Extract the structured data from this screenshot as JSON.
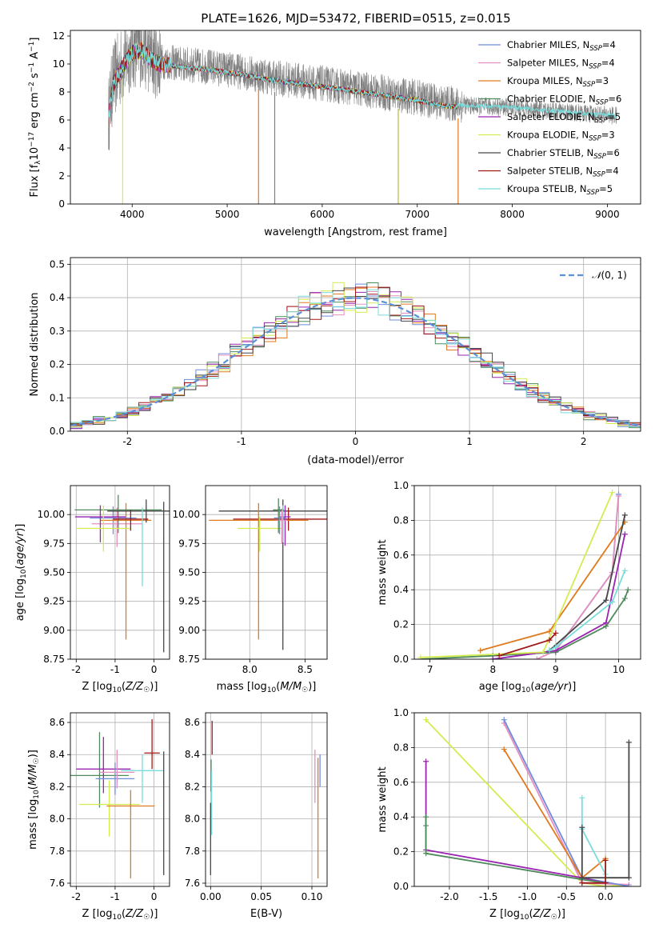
{
  "figure": {
    "title": "PLATE=1626, MJD=53472, FIBERID=0515, z=0.015"
  },
  "colors": {
    "Chabrier MILES": "#6f8bdc",
    "Salpeter MILES": "#e58fbf",
    "Kroupa MILES": "#e07a1f",
    "Chabrier ELODIE": "#4f8a5c",
    "Salpeter ELODIE": "#9b24b0",
    "Kroupa ELODIE": "#d4ec50",
    "Chabrier STELIB": "#474747",
    "Salpeter STELIB": "#a01818",
    "Kroupa STELIB": "#78dcdc",
    "data": "#7f7f7f",
    "normal_curve": "#5b8fd6",
    "grid": "#b0b0b0"
  },
  "chart_data": [
    {
      "id": "spectrum",
      "type": "line",
      "xlabel": "wavelength [Angstrom, rest frame]",
      "ylabel": "Flux [f_λ 10^-17 erg cm^-2 s^-1 A^-1]",
      "xlim": [
        3350,
        9350
      ],
      "ylim": [
        0,
        12.4
      ],
      "xticks": [
        4000,
        5000,
        6000,
        7000,
        8000,
        9000
      ],
      "yticks": [
        0,
        2,
        4,
        6,
        8,
        10,
        12
      ],
      "legend_position": "upper right",
      "observed_range": [
        3750,
        9100
      ],
      "series": [
        {
          "name": "Chabrier MILES",
          "nssp": 4
        },
        {
          "name": "Salpeter MILES",
          "nssp": 4
        },
        {
          "name": "Kroupa MILES",
          "nssp": 3
        },
        {
          "name": "Chabrier ELODIE",
          "nssp": 6
        },
        {
          "name": "Salpeter ELODIE",
          "nssp": 5
        },
        {
          "name": "Kroupa ELODIE",
          "nssp": 3
        },
        {
          "name": "Chabrier STELIB",
          "nssp": 6
        },
        {
          "name": "Salpeter STELIB",
          "nssp": 4
        },
        {
          "name": "Kroupa STELIB",
          "nssp": 5
        }
      ],
      "continuum": {
        "x": [
          3750,
          3800,
          3900,
          4000,
          4100,
          4200,
          4300,
          4500,
          4800,
          5000,
          5200,
          5500,
          6000,
          6300,
          6600,
          7000,
          7300,
          7600,
          8000,
          8500,
          9100
        ],
        "y": [
          6.2,
          8.8,
          10.0,
          11.0,
          11.2,
          10.5,
          10.2,
          10.0,
          9.8,
          9.6,
          9.4,
          9.0,
          8.6,
          8.3,
          8.0,
          7.6,
          7.2,
          7.0,
          6.9,
          6.6,
          6.3
        ]
      },
      "spikes_to_zero": [
        3900,
        5330,
        5500,
        6800,
        7430
      ]
    },
    {
      "id": "residuals",
      "type": "histogram",
      "xlabel": "(data-model)/error",
      "ylabel": "Normed distribution",
      "xlim": [
        -2.5,
        2.5
      ],
      "ylim": [
        0,
        0.52
      ],
      "xticks": [
        -2,
        -1,
        0,
        1,
        2
      ],
      "yticks": [
        0.0,
        0.1,
        0.2,
        0.3,
        0.4,
        0.5
      ],
      "bin_width": 0.1,
      "legend_position": "upper right",
      "reference_curve": {
        "label": "N(0,1)",
        "mu": 0,
        "sigma": 1
      }
    },
    {
      "id": "age_vs_Z",
      "type": "errorbar",
      "xlabel": "Z [log10(Z/Z☉)]",
      "ylabel": "age [log10(age/yr)]",
      "xlim": [
        -2.15,
        0.4
      ],
      "ylim": [
        8.75,
        10.25
      ],
      "xticks": [
        -2,
        -1,
        0
      ],
      "yticks": [
        8.75,
        9.0,
        9.25,
        9.5,
        9.75,
        10.0
      ],
      "points": [
        {
          "series": "Chabrier MILES",
          "x": -1.05,
          "xerr": 0.6,
          "y": 9.97,
          "yerr": [
            0.14,
            0.1
          ]
        },
        {
          "series": "Salpeter MILES",
          "x": -0.95,
          "xerr": 0.65,
          "y": 9.92,
          "yerr": [
            0.2,
            0.14
          ]
        },
        {
          "series": "Kroupa MILES",
          "x": -0.72,
          "xerr": 0.65,
          "y": 9.95,
          "yerr": [
            1.03,
            0.15
          ]
        },
        {
          "series": "Chabrier ELODIE",
          "x": -0.92,
          "xerr": 1.12,
          "y": 10.04,
          "yerr": [
            0.2,
            0.13
          ]
        },
        {
          "series": "Salpeter ELODIE",
          "x": -1.38,
          "xerr": 0.65,
          "y": 9.98,
          "yerr": [
            0.22,
            0.1
          ]
        },
        {
          "series": "Kroupa ELODIE",
          "x": -1.3,
          "xerr": 0.68,
          "y": 9.88,
          "yerr": [
            0.2,
            0.2
          ]
        },
        {
          "series": "Chabrier STELIB",
          "x": -0.2,
          "xerr": 1.0,
          "y": 10.03,
          "yerr": [
            0.1,
            0.1
          ]
        },
        {
          "series": "Salpeter STELIB",
          "x": -0.6,
          "xerr": 0.45,
          "y": 9.96,
          "yerr": [
            0.1,
            0.08
          ]
        },
        {
          "series": "Kroupa STELIB",
          "x": -0.3,
          "xerr": 0.0,
          "y": 9.96,
          "yerr": [
            0.58,
            0.1
          ]
        },
        {
          "series": "Chabrier STELIB",
          "x": 0.25,
          "xerr": 0.0,
          "y": 9.96,
          "yerr": [
            1.15,
            0.15
          ]
        }
      ]
    },
    {
      "id": "age_vs_mass",
      "type": "errorbar",
      "xlabel": "mass [log10(M/M☉)]",
      "ylabel": "",
      "xlim": [
        7.6,
        8.7
      ],
      "ylim": [
        8.75,
        10.25
      ],
      "xticks": [
        8.0,
        8.5
      ],
      "yticks": [
        8.75,
        9.0,
        9.25,
        9.5,
        9.75,
        10.0
      ],
      "points": [
        {
          "series": "Chabrier STELIB",
          "x": 8.3,
          "xerr": 0.58,
          "y": 10.03,
          "yerr": [
            1.2,
            0.1
          ]
        },
        {
          "series": "Salpeter STELIB",
          "x": 8.35,
          "xerr": 0.5,
          "y": 9.96,
          "yerr": [
            0.1,
            0.1
          ]
        },
        {
          "series": "Kroupa MILES",
          "x": 8.08,
          "xerr": 0.45,
          "y": 9.95,
          "yerr": [
            1.03,
            0.15
          ]
        },
        {
          "series": "Kroupa ELODIE",
          "x": 8.09,
          "xerr": 0.2,
          "y": 9.88,
          "yerr": [
            0.2,
            0.1
          ]
        },
        {
          "series": "Salpeter ELODIE",
          "x": 8.32,
          "xerr": 0.05,
          "y": 9.98,
          "yerr": [
            0.25,
            0.1
          ]
        },
        {
          "series": "Chabrier MILES",
          "x": 8.27,
          "xerr": 0.05,
          "y": 9.97,
          "yerr": [
            0.14,
            0.1
          ]
        },
        {
          "series": "Salpeter MILES",
          "x": 8.29,
          "xerr": 0.05,
          "y": 9.95,
          "yerr": [
            0.2,
            0.1
          ]
        },
        {
          "series": "Chabrier ELODIE",
          "x": 8.26,
          "xerr": 0.05,
          "y": 10.04,
          "yerr": [
            0.2,
            0.1
          ]
        },
        {
          "series": "Kroupa STELIB",
          "x": 8.3,
          "xerr": 0.0,
          "y": 9.96,
          "yerr": [
            0.2,
            0.12
          ]
        }
      ]
    },
    {
      "id": "massweight_vs_age",
      "type": "line",
      "xlabel": "age [log10(age/yr)]",
      "ylabel": "mass weight",
      "xlim": [
        6.75,
        10.35
      ],
      "ylim": [
        0,
        1.0
      ],
      "xticks": [
        7,
        8,
        9,
        10
      ],
      "yticks": [
        0.0,
        0.2,
        0.4,
        0.6,
        0.8,
        1.0
      ],
      "series": [
        {
          "name": "Chabrier MILES",
          "x": [
            8.0,
            9.0,
            9.9,
            10.0
          ],
          "y": [
            0.0,
            0.05,
            0.5,
            0.95
          ]
        },
        {
          "name": "Salpeter MILES",
          "x": [
            8.7,
            9.0,
            9.9,
            10.0
          ],
          "y": [
            0.0,
            0.05,
            0.5,
            0.94
          ]
        },
        {
          "name": "Kroupa MILES",
          "x": [
            7.8,
            8.9,
            10.1
          ],
          "y": [
            0.05,
            0.16,
            0.79
          ]
        },
        {
          "name": "Chabrier ELODIE",
          "x": [
            6.85,
            8.0,
            9.0,
            9.8,
            10.1,
            10.15
          ],
          "y": [
            0.0,
            0.02,
            0.04,
            0.19,
            0.35,
            0.4
          ]
        },
        {
          "name": "Salpeter ELODIE",
          "x": [
            8.0,
            9.0,
            9.8,
            10.1
          ],
          "y": [
            0.0,
            0.05,
            0.21,
            0.72
          ]
        },
        {
          "name": "Kroupa ELODIE",
          "x": [
            6.85,
            8.8,
            9.9
          ],
          "y": [
            0.01,
            0.04,
            0.96
          ]
        },
        {
          "name": "Chabrier STELIB",
          "x": [
            8.9,
            9.8,
            10.1
          ],
          "y": [
            0.05,
            0.34,
            0.83
          ]
        },
        {
          "name": "Salpeter STELIB",
          "x": [
            8.1,
            8.9,
            9.0
          ],
          "y": [
            0.02,
            0.11,
            0.15
          ]
        },
        {
          "name": "Kroupa STELIB",
          "x": [
            8.9,
            9.0,
            9.9,
            10.1
          ],
          "y": [
            0.05,
            0.07,
            0.33,
            0.51
          ]
        }
      ]
    },
    {
      "id": "mass_vs_Z",
      "type": "errorbar",
      "xlabel": "Z [log10(Z/Z☉)]",
      "ylabel": "mass [log10(M/M☉)]",
      "xlim": [
        -2.15,
        0.4
      ],
      "ylim": [
        7.58,
        8.66
      ],
      "xticks": [
        -2,
        -1,
        0
      ],
      "yticks": [
        7.6,
        7.8,
        8.0,
        8.2,
        8.4,
        8.6
      ],
      "points": [
        {
          "series": "Chabrier ELODIE",
          "x": -1.4,
          "xerr": 0.75,
          "y": 8.27,
          "yerr": [
            0.2,
            0.27
          ]
        },
        {
          "series": "Salpeter ELODIE",
          "x": -1.3,
          "xerr": 0.7,
          "y": 8.31,
          "yerr": [
            0.15,
            0.2
          ]
        },
        {
          "series": "Kroupa ELODIE",
          "x": -1.15,
          "xerr": 0.78,
          "y": 8.09,
          "yerr": [
            0.2,
            0.15
          ]
        },
        {
          "series": "Chabrier MILES",
          "x": -1.0,
          "xerr": 0.5,
          "y": 8.25,
          "yerr": [
            0.1,
            0.1
          ]
        },
        {
          "series": "Salpeter MILES",
          "x": -0.95,
          "xerr": 0.45,
          "y": 8.29,
          "yerr": [
            0.1,
            0.14
          ]
        },
        {
          "series": "Kroupa MILES",
          "x": -0.6,
          "xerr": 0.62,
          "y": 8.08,
          "yerr": [
            0.45,
            0.1
          ]
        },
        {
          "series": "Kroupa STELIB",
          "x": -0.3,
          "xerr": 0.55,
          "y": 8.3,
          "yerr": [
            0.2,
            0.1
          ]
        },
        {
          "series": "Salpeter STELIB",
          "x": -0.05,
          "xerr": 0.2,
          "y": 8.41,
          "yerr": [
            0.1,
            0.21
          ]
        },
        {
          "series": "Chabrier STELIB",
          "x": 0.25,
          "xerr": 0.0,
          "y": 8.33,
          "yerr": [
            0.68,
            0.09
          ]
        }
      ]
    },
    {
      "id": "mass_vs_EBV",
      "type": "errorbar",
      "xlabel": "E(B-V)",
      "ylabel": "",
      "xlim": [
        -0.005,
        0.115
      ],
      "ylim": [
        7.58,
        8.66
      ],
      "xticks": [
        0.0,
        0.05,
        0.1
      ],
      "yticks": [
        7.6,
        7.8,
        8.0,
        8.2,
        8.4,
        8.6
      ],
      "points": [
        {
          "series": "Salpeter STELIB",
          "x": 0.0015,
          "xerr": 0.0,
          "y": 8.5,
          "yerr": [
            0.1,
            0.11
          ]
        },
        {
          "series": "Chabrier ELODIE",
          "x": 0.0005,
          "xerr": 0.0,
          "y": 8.27,
          "yerr": [
            0.1,
            0.1
          ]
        },
        {
          "series": "Kroupa STELIB",
          "x": 0.001,
          "xerr": 0.0,
          "y": 8.1,
          "yerr": [
            0.2,
            0.2
          ]
        },
        {
          "series": "Chabrier STELIB",
          "x": 0.0,
          "xerr": 0.0,
          "y": 7.9,
          "yerr": [
            0.25,
            0.2
          ]
        },
        {
          "series": "Salpeter MILES",
          "x": 0.103,
          "xerr": 0.0,
          "y": 8.25,
          "yerr": [
            0.15,
            0.18
          ]
        },
        {
          "series": "Kroupa MILES",
          "x": 0.106,
          "xerr": 0.0,
          "y": 8.08,
          "yerr": [
            0.45,
            0.3
          ]
        },
        {
          "series": "Chabrier MILES",
          "x": 0.108,
          "xerr": 0.0,
          "y": 8.3,
          "yerr": [
            0.1,
            0.1
          ]
        }
      ]
    },
    {
      "id": "massweight_vs_Z",
      "type": "line",
      "xlabel": "Z [log10(Z/Z☉)]",
      "ylabel": "mass weight",
      "xlim": [
        -2.45,
        0.45
      ],
      "ylim": [
        0,
        1.0
      ],
      "xticks": [
        -2.0,
        -1.5,
        -1.0,
        -0.5,
        0.0
      ],
      "yticks": [
        0.0,
        0.2,
        0.4,
        0.6,
        0.8,
        1.0
      ],
      "series": [
        {
          "name": "Kroupa ELODIE",
          "x": [
            -2.3,
            -0.3,
            0.0,
            0.3
          ],
          "y": [
            0.96,
            0.02,
            0.0,
            0.01
          ]
        },
        {
          "name": "Salpeter MILES",
          "x": [
            -1.3,
            -0.3,
            0.3
          ],
          "y": [
            0.94,
            0.02,
            0.01
          ]
        },
        {
          "name": "Chabrier MILES",
          "x": [
            -1.3,
            -0.3,
            0.3
          ],
          "y": [
            0.96,
            0.05,
            0.0
          ]
        },
        {
          "name": "Kroupa MILES",
          "x": [
            -1.3,
            -0.3,
            0.0
          ],
          "y": [
            0.79,
            0.05,
            0.16
          ]
        },
        {
          "name": "Salpeter ELODIE",
          "x": [
            -2.3,
            -2.3,
            -0.3,
            0.0
          ],
          "y": [
            0.72,
            0.21,
            0.05,
            0.02
          ]
        },
        {
          "name": "Chabrier ELODIE",
          "x": [
            -2.3,
            -2.3,
            -2.3,
            -0.3,
            0.0
          ],
          "y": [
            0.4,
            0.35,
            0.19,
            0.04,
            0.02
          ]
        },
        {
          "name": "Kroupa STELIB",
          "x": [
            -0.3,
            -0.3,
            0.0,
            0.0
          ],
          "y": [
            0.51,
            0.33,
            0.07,
            0.05
          ]
        },
        {
          "name": "Chabrier STELIB",
          "x": [
            -0.3,
            -0.3,
            0.3,
            0.3
          ],
          "y": [
            0.34,
            0.05,
            0.05,
            0.83
          ]
        },
        {
          "name": "Salpeter STELIB",
          "x": [
            -0.3,
            0.0,
            0.0
          ],
          "y": [
            0.02,
            0.02,
            0.15
          ]
        }
      ]
    }
  ]
}
